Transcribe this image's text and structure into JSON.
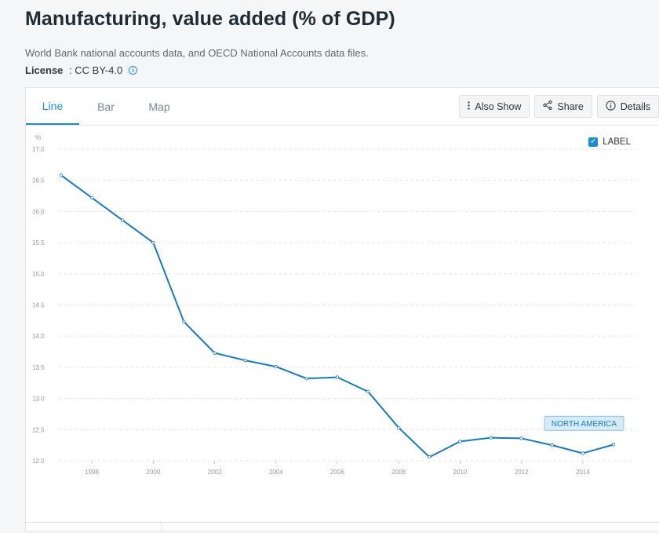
{
  "header": {
    "title": "Manufacturing, value added (% of GDP)",
    "source": "World Bank national accounts data, and OECD National Accounts data files.",
    "license_label": "License",
    "license_sep": " : ",
    "license_value": "CC BY-4.0"
  },
  "tabs": [
    {
      "label": "Line",
      "active": true
    },
    {
      "label": "Bar",
      "active": false
    },
    {
      "label": "Map",
      "active": false
    }
  ],
  "toolbar": {
    "also_show": "Also Show",
    "share": "Share",
    "details": "Details"
  },
  "label_toggle": {
    "label": "LABEL",
    "checked": true
  },
  "colors": {
    "accent": "#1a8fd0",
    "line": "#1a7ab8"
  },
  "chart_data": {
    "type": "line",
    "title": "",
    "xlabel": "",
    "ylabel": "%",
    "ylim": [
      12.0,
      17.0
    ],
    "xlim": [
      1997,
      2015
    ],
    "yticks": [
      "12.0",
      "12.5",
      "13.0",
      "13.5",
      "14.0",
      "14.5",
      "15.0",
      "15.5",
      "16.0",
      "16.5",
      "17.0"
    ],
    "xticks": [
      "1998",
      "2000",
      "2002",
      "2004",
      "2006",
      "2008",
      "2010",
      "2012",
      "2014"
    ],
    "series": [
      {
        "name": "NORTH AMERICA",
        "x": [
          1997,
          1998,
          1999,
          2000,
          2001,
          2002,
          2003,
          2004,
          2005,
          2006,
          2007,
          2008,
          2009,
          2010,
          2011,
          2012,
          2013,
          2014,
          2015
        ],
        "values": [
          16.58,
          16.22,
          15.86,
          15.5,
          14.23,
          13.73,
          13.61,
          13.51,
          13.32,
          13.34,
          13.11,
          12.53,
          12.06,
          12.31,
          12.37,
          12.36,
          12.25,
          12.12,
          12.26
        ]
      }
    ]
  }
}
